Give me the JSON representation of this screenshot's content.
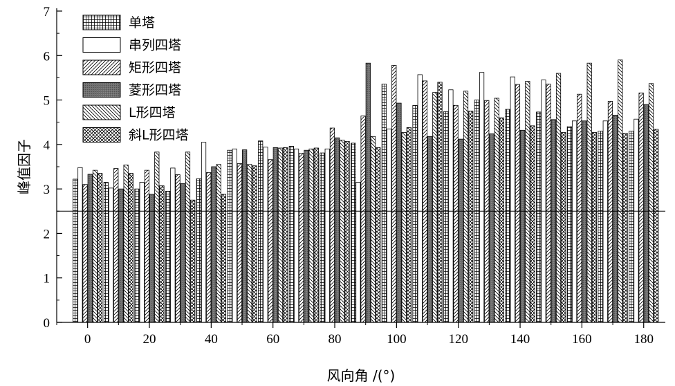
{
  "chart_data": {
    "type": "bar",
    "xlabel": "风向角 /(°)",
    "ylabel": "峰值因子",
    "x": [
      0,
      10,
      20,
      30,
      40,
      50,
      60,
      70,
      80,
      90,
      100,
      110,
      120,
      130,
      140,
      150,
      160,
      170,
      180
    ],
    "xlim": [
      -10,
      187
    ],
    "ylim": [
      0,
      7
    ],
    "xticks": [
      0,
      20,
      40,
      60,
      80,
      100,
      120,
      140,
      160,
      180
    ],
    "yticks": [
      0,
      1,
      2,
      3,
      4,
      5,
      6,
      7
    ],
    "reference_line": 2.5,
    "grid": false,
    "legend_position": "top-left",
    "series": [
      {
        "name": "单塔",
        "pattern": "grid",
        "values": [
          3.22,
          3.15,
          3.0,
          2.95,
          3.23,
          3.87,
          4.08,
          3.96,
          3.81,
          4.03,
          5.36,
          4.88,
          4.74,
          5.0,
          4.79,
          4.73,
          4.4,
          4.3,
          4.3
        ]
      },
      {
        "name": "串列四塔",
        "pattern": "empty",
        "values": [
          3.48,
          3.02,
          3.15,
          3.47,
          4.05,
          3.9,
          3.94,
          3.9,
          3.9,
          3.15,
          4.35,
          5.57,
          5.23,
          5.62,
          5.52,
          5.45,
          4.53,
          4.53,
          4.57
        ]
      },
      {
        "name": "矩形四塔",
        "pattern": "diag-right",
        "values": [
          3.1,
          3.46,
          3.42,
          3.32,
          3.37,
          3.57,
          3.66,
          3.8,
          4.37,
          4.64,
          5.78,
          5.43,
          4.88,
          4.99,
          5.35,
          5.36,
          5.13,
          4.97,
          5.16
        ]
      },
      {
        "name": "菱形四塔",
        "pattern": "dark",
        "values": [
          3.33,
          3.0,
          2.88,
          3.12,
          3.5,
          3.88,
          3.93,
          3.87,
          4.15,
          5.83,
          4.93,
          4.18,
          4.12,
          4.24,
          4.32,
          4.56,
          4.53,
          4.66,
          4.9
        ]
      },
      {
        "name": "L形四塔",
        "pattern": "diag-left",
        "values": [
          3.42,
          3.54,
          3.83,
          3.83,
          3.55,
          3.55,
          3.92,
          3.9,
          4.1,
          4.18,
          4.27,
          5.17,
          5.2,
          5.04,
          5.42,
          5.6,
          5.83,
          5.9,
          5.37
        ]
      },
      {
        "name": "斜L形四塔",
        "pattern": "crosshatch",
        "values": [
          3.35,
          3.35,
          3.07,
          2.75,
          2.88,
          3.52,
          3.93,
          3.92,
          4.07,
          3.93,
          4.38,
          5.4,
          4.75,
          4.6,
          4.42,
          4.27,
          4.27,
          4.25,
          4.34
        ]
      }
    ]
  }
}
